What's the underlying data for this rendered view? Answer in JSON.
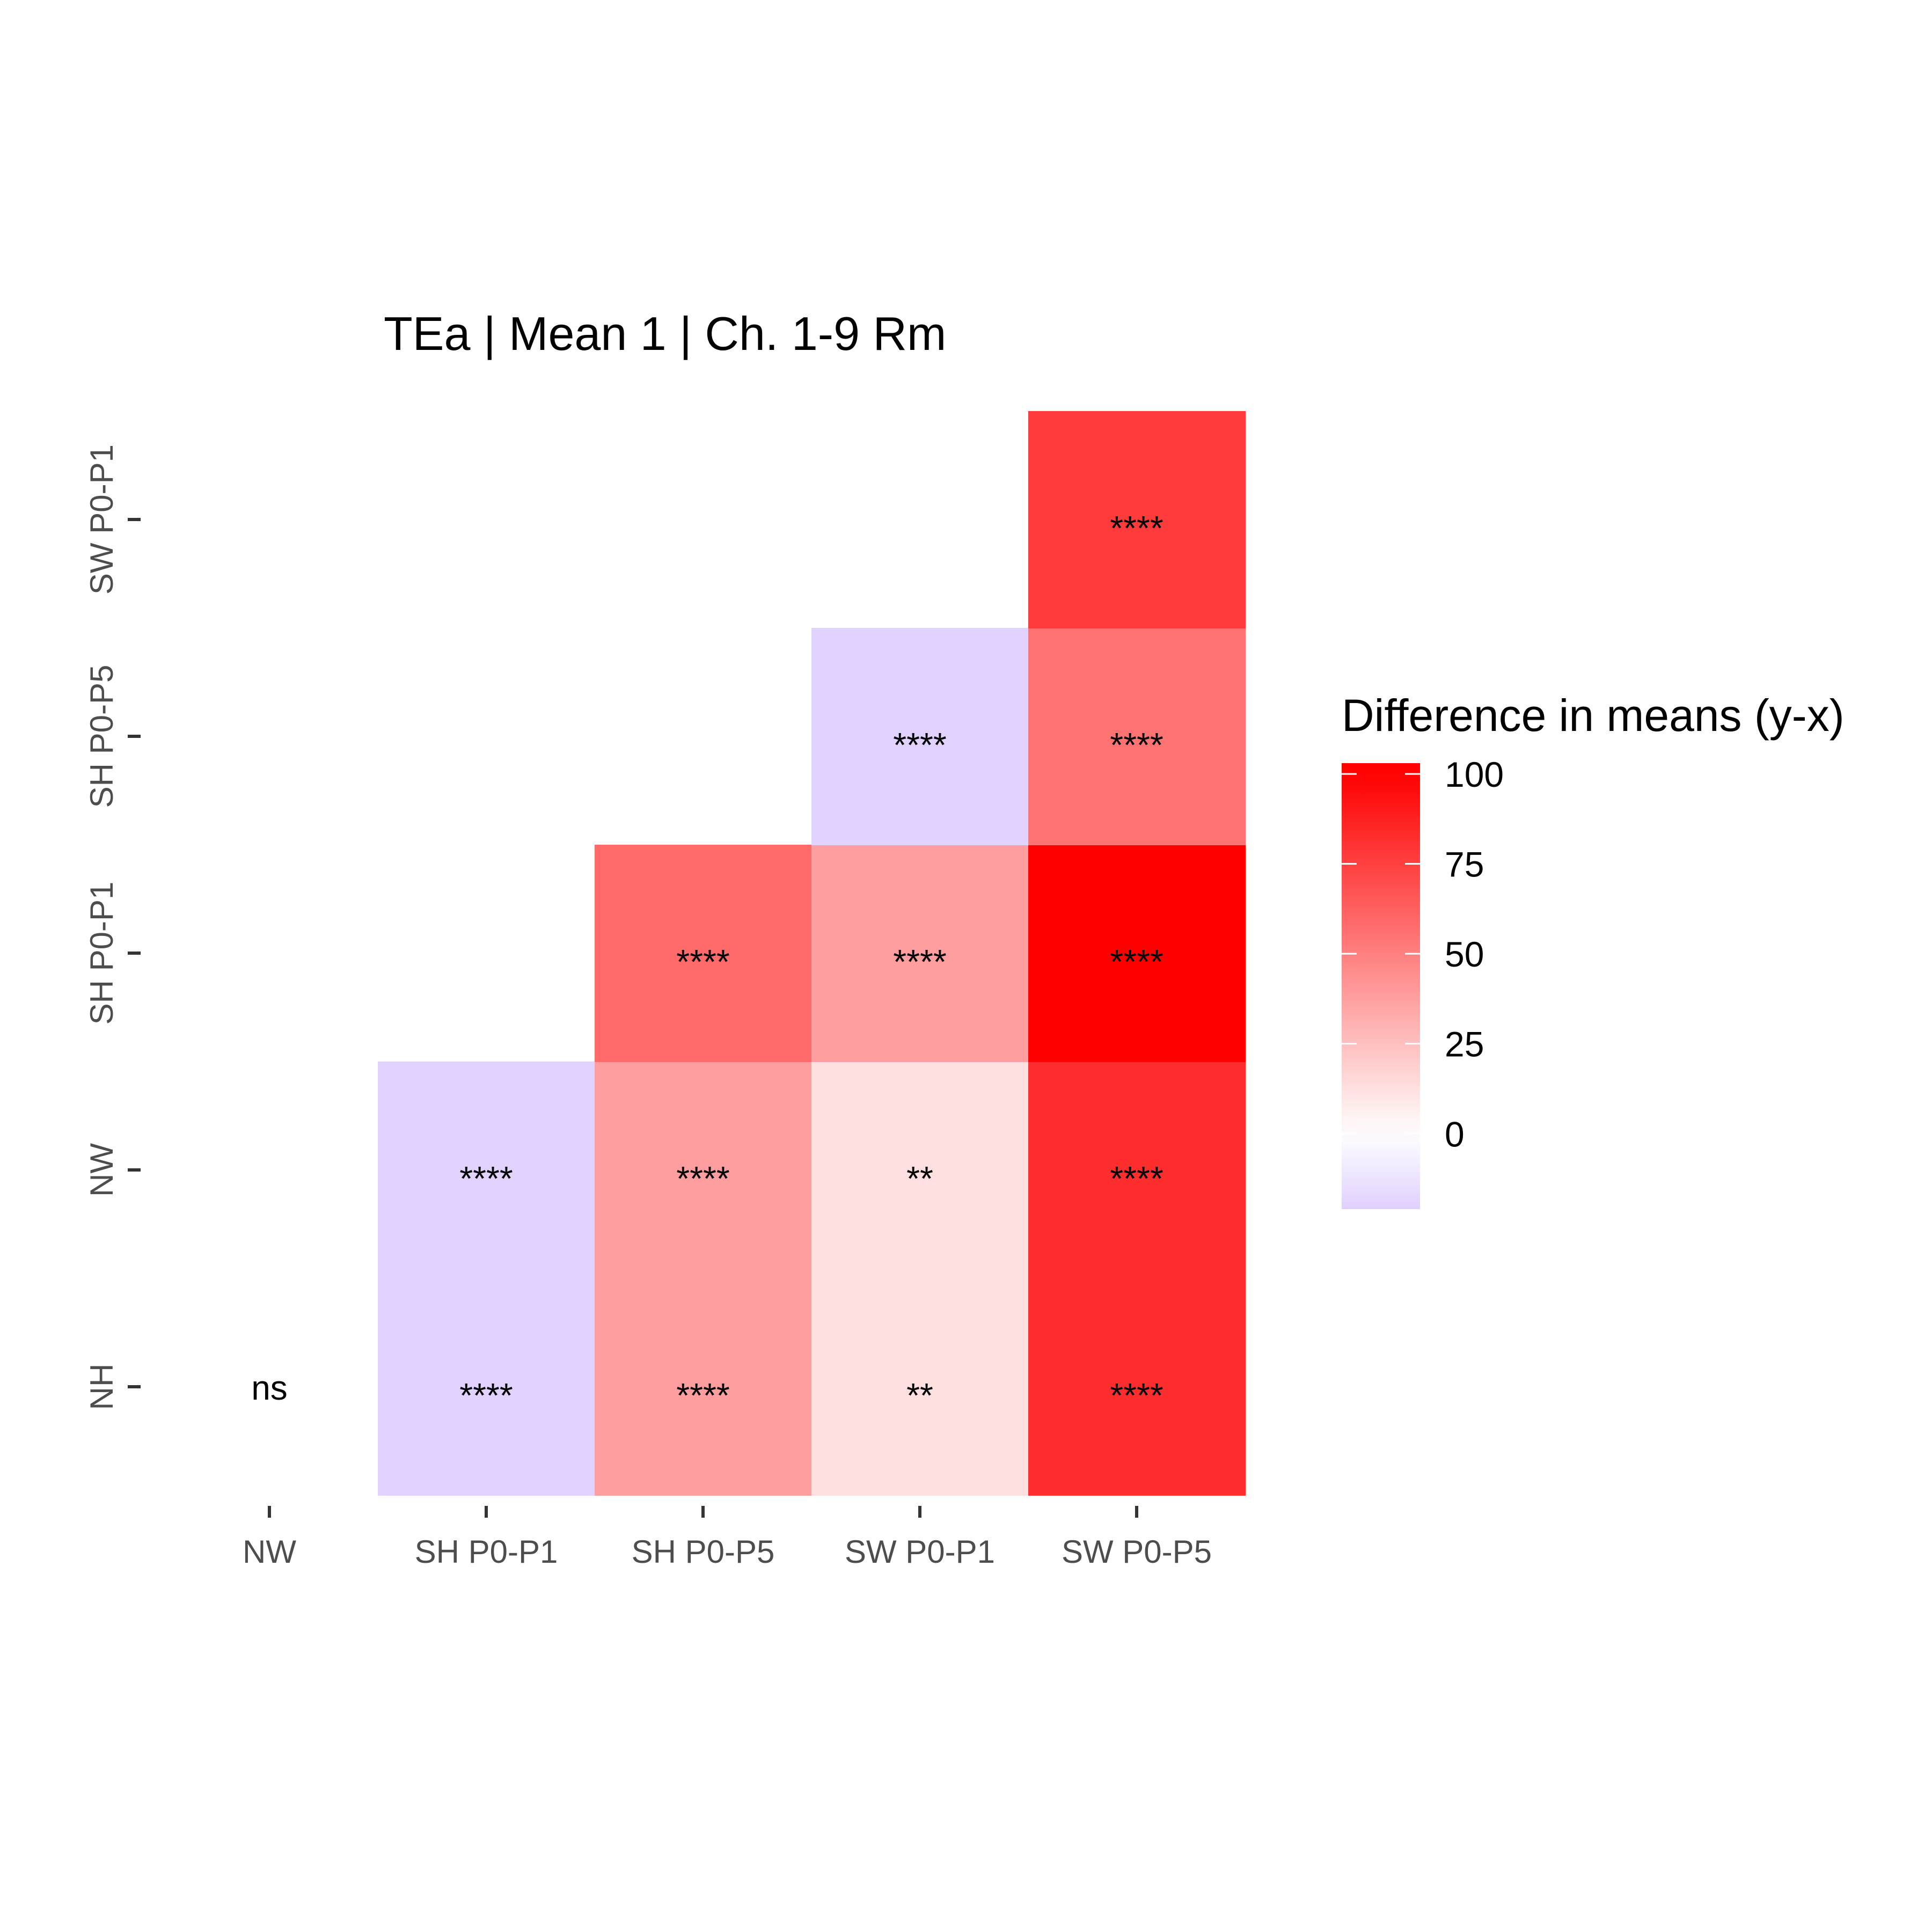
{
  "chart_data": {
    "type": "heatmap",
    "title": "TEa | Mean 1 | Ch. 1-9 Rm",
    "xlabel": "",
    "ylabel": "",
    "x_categories": [
      "NW",
      "SH P0-P1",
      "SH P0-P5",
      "SW P0-P1",
      "SW P0-P5"
    ],
    "y_categories": [
      "NH",
      "NW",
      "SH P0-P1",
      "SH P0-P5",
      "SW P0-P1"
    ],
    "legend": {
      "title": "Difference in means (y-x)",
      "ticks": [
        0,
        25,
        50,
        75,
        100
      ],
      "range": [
        -21,
        103
      ],
      "low_color": "#e0d0ff",
      "mid_color": "#ffffff",
      "high_color": "#ff0000",
      "placement": "right"
    },
    "cells": [
      {
        "x": "NW",
        "y": "NH",
        "value": null,
        "label": "ns"
      },
      {
        "x": "SH P0-P1",
        "y": "NH",
        "value": -20,
        "label": "****"
      },
      {
        "x": "SH P0-P5",
        "y": "NH",
        "value": 38,
        "label": "****"
      },
      {
        "x": "SW P0-P1",
        "y": "NH",
        "value": 12,
        "label": "**"
      },
      {
        "x": "SW P0-P5",
        "y": "NH",
        "value": 82,
        "label": "****"
      },
      {
        "x": "SH P0-P1",
        "y": "NW",
        "value": -20,
        "label": "****"
      },
      {
        "x": "SH P0-P5",
        "y": "NW",
        "value": 38,
        "label": "****"
      },
      {
        "x": "SW P0-P1",
        "y": "NW",
        "value": 12,
        "label": "**"
      },
      {
        "x": "SW P0-P5",
        "y": "NW",
        "value": 82,
        "label": "****"
      },
      {
        "x": "SH P0-P5",
        "y": "SH P0-P1",
        "value": 58,
        "label": "****"
      },
      {
        "x": "SW P0-P1",
        "y": "SH P0-P1",
        "value": 38,
        "label": "****"
      },
      {
        "x": "SW P0-P5",
        "y": "SH P0-P1",
        "value": 103,
        "label": "****"
      },
      {
        "x": "SW P0-P1",
        "y": "SH P0-P5",
        "value": -20,
        "label": "****"
      },
      {
        "x": "SW P0-P5",
        "y": "SH P0-P5",
        "value": 55,
        "label": "****"
      },
      {
        "x": "SW P0-P5",
        "y": "SW P0-P1",
        "value": 77,
        "label": "****"
      }
    ]
  }
}
